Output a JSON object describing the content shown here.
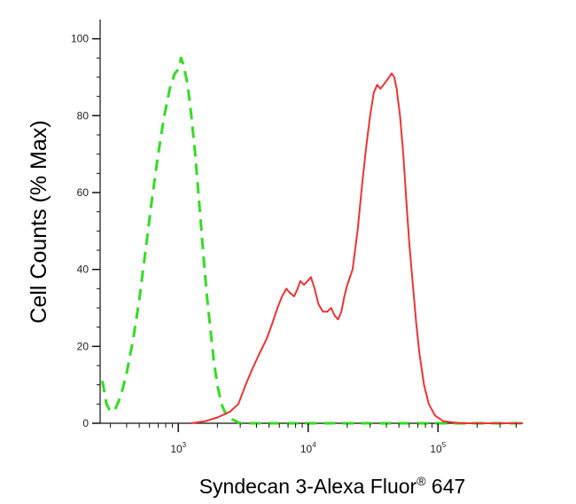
{
  "chart_data": {
    "type": "line",
    "xlabel": "Syndecan 3-Alexa Fluor",
    "xlabel_mark": "®",
    "xlabel_suffix": " 647",
    "ylabel": "Cell Counts (% Max)",
    "x_scale": "log",
    "xlim": [
      250,
      450000
    ],
    "ylim": [
      0,
      105
    ],
    "x_ticks": [
      {
        "value": 1000,
        "base": "10",
        "exp": "3"
      },
      {
        "value": 10000,
        "base": "10",
        "exp": "4"
      },
      {
        "value": 100000,
        "base": "10",
        "exp": "5"
      }
    ],
    "y_ticks": [
      0,
      20,
      40,
      60,
      80,
      100
    ],
    "grid": false,
    "series": [
      {
        "color": "#33dd22",
        "style": "dashed",
        "points": [
          [
            260,
            11
          ],
          [
            280,
            5
          ],
          [
            300,
            3
          ],
          [
            330,
            4
          ],
          [
            360,
            7
          ],
          [
            400,
            13
          ],
          [
            450,
            22
          ],
          [
            500,
            32
          ],
          [
            560,
            45
          ],
          [
            620,
            57
          ],
          [
            700,
            70
          ],
          [
            780,
            80
          ],
          [
            860,
            87
          ],
          [
            940,
            91
          ],
          [
            1000,
            92
          ],
          [
            1050,
            95
          ],
          [
            1100,
            93
          ],
          [
            1180,
            88
          ],
          [
            1260,
            80
          ],
          [
            1350,
            70
          ],
          [
            1450,
            57
          ],
          [
            1550,
            45
          ],
          [
            1650,
            34
          ],
          [
            1760,
            25
          ],
          [
            1880,
            16
          ],
          [
            2000,
            10
          ],
          [
            2150,
            5
          ],
          [
            2350,
            2
          ],
          [
            2600,
            1
          ],
          [
            3000,
            0
          ],
          [
            10000,
            0
          ],
          [
            100000,
            0
          ],
          [
            450000,
            0
          ]
        ]
      },
      {
        "color": "#ee3333",
        "style": "solid",
        "points": [
          [
            1250,
            0
          ],
          [
            1600,
            0.5
          ],
          [
            2000,
            1.5
          ],
          [
            2500,
            3
          ],
          [
            2900,
            5
          ],
          [
            3300,
            10
          ],
          [
            3700,
            14
          ],
          [
            4200,
            18
          ],
          [
            4800,
            22
          ],
          [
            5300,
            26
          ],
          [
            5800,
            30
          ],
          [
            6300,
            33
          ],
          [
            6800,
            35
          ],
          [
            7200,
            34
          ],
          [
            7800,
            33
          ],
          [
            8300,
            35
          ],
          [
            8700,
            37
          ],
          [
            9300,
            36
          ],
          [
            9900,
            37
          ],
          [
            10500,
            38
          ],
          [
            11200,
            35
          ],
          [
            12000,
            31
          ],
          [
            13000,
            29
          ],
          [
            14000,
            29
          ],
          [
            15000,
            30
          ],
          [
            16000,
            28
          ],
          [
            17000,
            27
          ],
          [
            18000,
            29
          ],
          [
            19000,
            33
          ],
          [
            20000,
            36
          ],
          [
            22000,
            40
          ],
          [
            24000,
            50
          ],
          [
            26000,
            62
          ],
          [
            28000,
            72
          ],
          [
            30000,
            80
          ],
          [
            32000,
            86
          ],
          [
            34000,
            88
          ],
          [
            36000,
            87
          ],
          [
            38000,
            88
          ],
          [
            40000,
            89
          ],
          [
            42000,
            90
          ],
          [
            44000,
            91
          ],
          [
            46000,
            90
          ],
          [
            48000,
            87
          ],
          [
            51000,
            80
          ],
          [
            54000,
            70
          ],
          [
            57000,
            58
          ],
          [
            60000,
            47
          ],
          [
            64000,
            36
          ],
          [
            68000,
            26
          ],
          [
            72000,
            18
          ],
          [
            78000,
            10
          ],
          [
            85000,
            5
          ],
          [
            95000,
            2
          ],
          [
            110000,
            0.5
          ],
          [
            150000,
            0
          ],
          [
            450000,
            0
          ]
        ]
      }
    ]
  }
}
